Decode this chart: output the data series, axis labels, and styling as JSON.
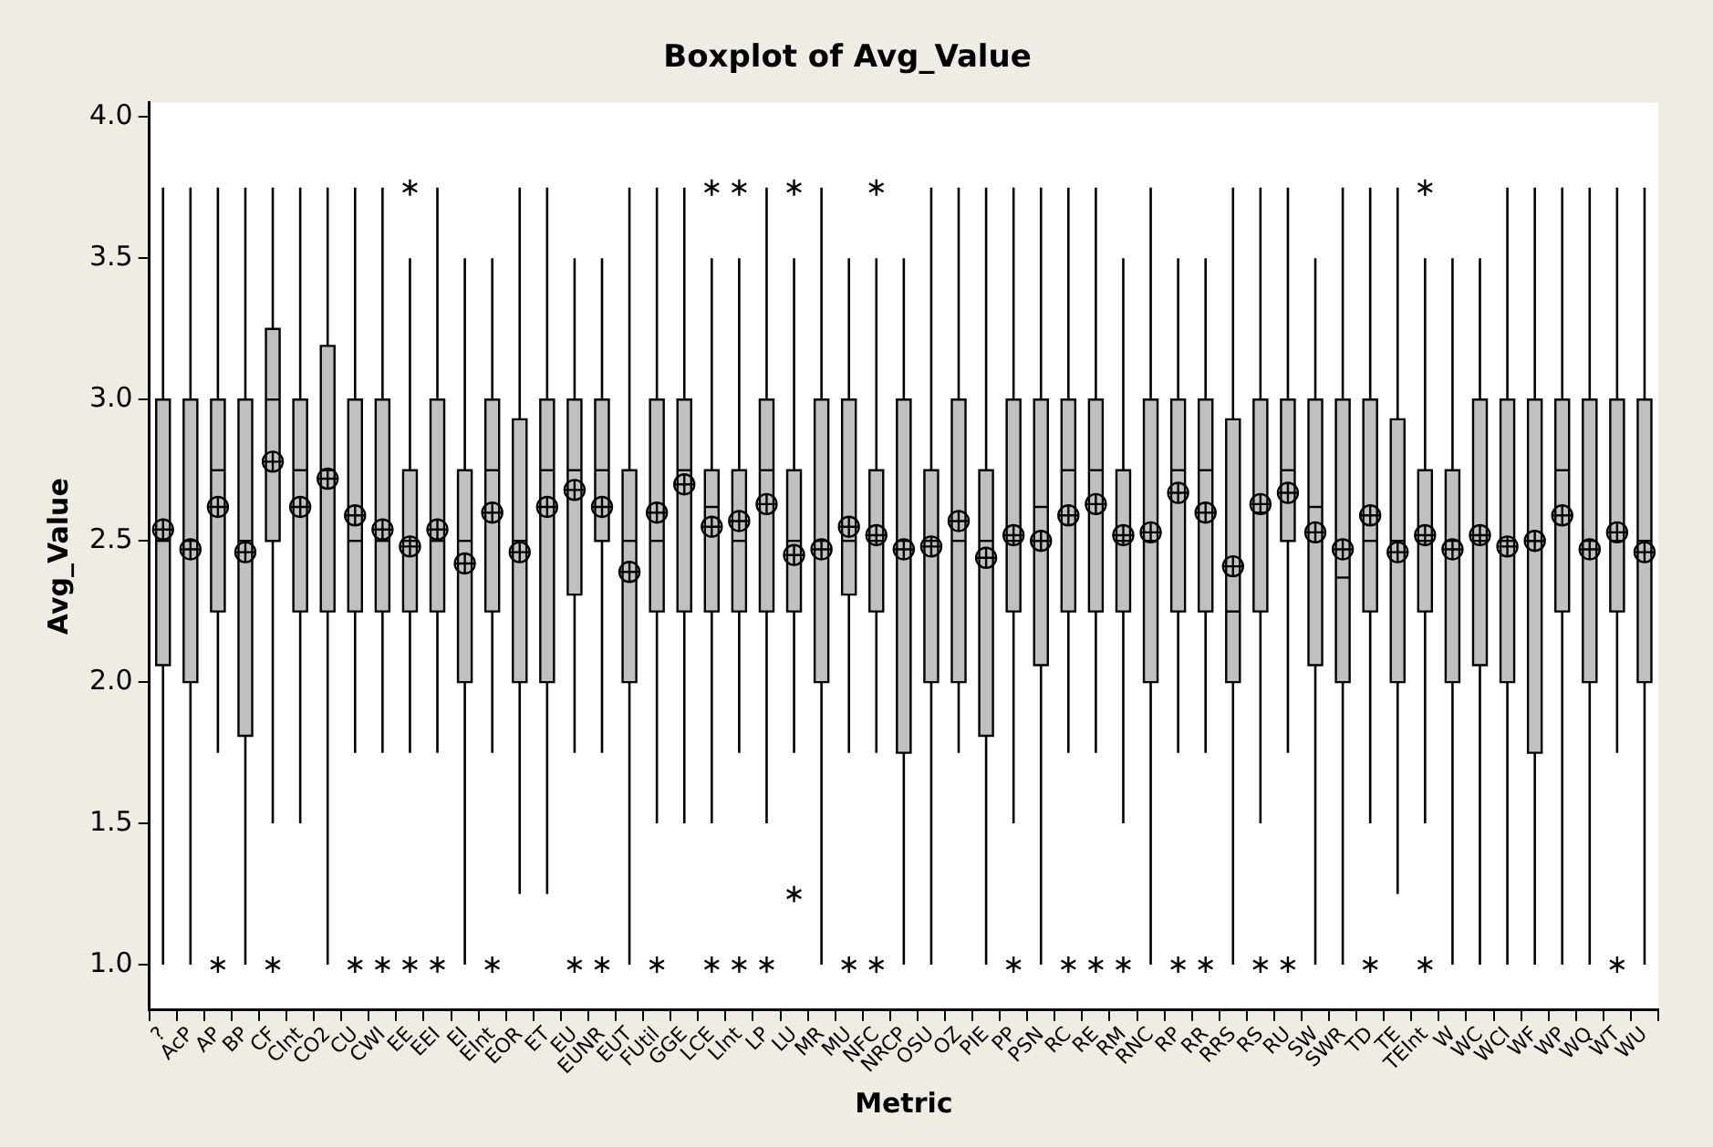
{
  "chart_data": {
    "type": "box",
    "title": "Boxplot of Avg_Value",
    "xlabel": "Metric",
    "ylabel": "Avg_Value",
    "categories": [
      "?",
      "AcP",
      "AP",
      "BP",
      "CF",
      "CInt",
      "CO2",
      "CU",
      "CWI",
      "EE",
      "EEI",
      "EI",
      "EInt",
      "EOR",
      "ET",
      "EU",
      "EUNR",
      "EUT",
      "FUtil",
      "GGE",
      "LCE",
      "LInt",
      "LP",
      "LU",
      "MR",
      "MU",
      "NFC",
      "NRCP",
      "OSU",
      "OZ",
      "PIE",
      "PP",
      "PSN",
      "RC",
      "RE",
      "RM",
      "RNC",
      "RP",
      "RR",
      "RRS",
      "RS",
      "RU",
      "SW",
      "SWR",
      "TD",
      "TE",
      "TEInt",
      "W",
      "WC",
      "WCI",
      "WF",
      "WP",
      "WQ",
      "WT",
      "WU"
    ],
    "ylim": [
      0.84,
      4.05
    ],
    "yticks": [
      {
        "value": 1,
        "label": "1.0"
      },
      {
        "value": 1.5,
        "label": "1.5"
      },
      {
        "value": 2,
        "label": "2.0"
      },
      {
        "value": 2.5,
        "label": "2.5"
      },
      {
        "value": 3,
        "label": "3.0"
      },
      {
        "value": 3.5,
        "label": "3.5"
      },
      {
        "value": 4,
        "label": "4.0"
      }
    ],
    "series": [
      {
        "color": "#c0c0c0",
        "boxes": [
          {
            "low": 1.0,
            "q1": 2.06,
            "median": 2.5,
            "q3": 3.0,
            "high": 3.75,
            "mean": 2.54
          },
          {
            "low": 1.0,
            "q1": 2.0,
            "median": 2.5,
            "q3": 3.0,
            "high": 3.75,
            "mean": 2.47
          },
          {
            "low": 1.75,
            "q1": 2.25,
            "median": 2.75,
            "q3": 3.0,
            "high": 3.75,
            "mean": 2.62,
            "outliers": [
              1.0
            ]
          },
          {
            "low": 1.0,
            "q1": 1.81,
            "median": 2.5,
            "q3": 3.0,
            "high": 3.75,
            "mean": 2.46
          },
          {
            "low": 1.5,
            "q1": 2.5,
            "median": 3.0,
            "q3": 3.25,
            "high": 3.75,
            "mean": 2.78,
            "outliers": [
              1.0
            ]
          },
          {
            "low": 1.5,
            "q1": 2.25,
            "median": 2.75,
            "q3": 3.0,
            "high": 3.75,
            "mean": 2.62
          },
          {
            "low": 1.0,
            "q1": 2.25,
            "median": 2.75,
            "q3": 3.19,
            "high": 3.75,
            "mean": 2.72
          },
          {
            "low": 1.75,
            "q1": 2.25,
            "median": 2.5,
            "q3": 3.0,
            "high": 3.75,
            "mean": 2.59,
            "outliers": [
              1.0
            ]
          },
          {
            "low": 1.75,
            "q1": 2.25,
            "median": 2.5,
            "q3": 3.0,
            "high": 3.75,
            "mean": 2.54,
            "outliers": [
              1.0
            ]
          },
          {
            "low": 1.75,
            "q1": 2.25,
            "median": 2.5,
            "q3": 2.75,
            "high": 3.5,
            "mean": 2.48,
            "outliers": [
              3.75,
              1.0
            ]
          },
          {
            "low": 1.75,
            "q1": 2.25,
            "median": 2.5,
            "q3": 3.0,
            "high": 3.75,
            "mean": 2.54,
            "outliers": [
              1.0
            ]
          },
          {
            "low": 1.0,
            "q1": 2.0,
            "median": 2.5,
            "q3": 2.75,
            "high": 3.5,
            "mean": 2.42
          },
          {
            "low": 1.75,
            "q1": 2.25,
            "median": 2.75,
            "q3": 3.0,
            "high": 3.5,
            "mean": 2.6,
            "outliers": [
              1.0
            ]
          },
          {
            "low": 1.25,
            "q1": 2.0,
            "median": 2.5,
            "q3": 2.93,
            "high": 3.75,
            "mean": 2.46
          },
          {
            "low": 1.25,
            "q1": 2.0,
            "median": 2.75,
            "q3": 3.0,
            "high": 3.75,
            "mean": 2.62
          },
          {
            "low": 1.75,
            "q1": 2.31,
            "median": 2.75,
            "q3": 3.0,
            "high": 3.5,
            "mean": 2.68,
            "outliers": [
              1.0
            ]
          },
          {
            "low": 1.75,
            "q1": 2.5,
            "median": 2.75,
            "q3": 3.0,
            "high": 3.5,
            "mean": 2.62,
            "outliers": [
              1.0
            ]
          },
          {
            "low": 1.0,
            "q1": 2.0,
            "median": 2.5,
            "q3": 2.75,
            "high": 3.75,
            "mean": 2.39
          },
          {
            "low": 1.5,
            "q1": 2.25,
            "median": 2.5,
            "q3": 3.0,
            "high": 3.75,
            "mean": 2.6,
            "outliers": [
              1.0
            ]
          },
          {
            "low": 1.5,
            "q1": 2.25,
            "median": 2.75,
            "q3": 3.0,
            "high": 3.75,
            "mean": 2.7
          },
          {
            "low": 1.5,
            "q1": 2.25,
            "median": 2.62,
            "q3": 2.75,
            "high": 3.5,
            "mean": 2.55,
            "outliers": [
              3.75,
              1.0
            ]
          },
          {
            "low": 1.75,
            "q1": 2.25,
            "median": 2.5,
            "q3": 2.75,
            "high": 3.5,
            "mean": 2.57,
            "outliers": [
              3.75,
              1.0
            ]
          },
          {
            "low": 1.5,
            "q1": 2.25,
            "median": 2.75,
            "q3": 3.0,
            "high": 3.75,
            "mean": 2.63,
            "outliers": [
              1.0
            ]
          },
          {
            "low": 1.75,
            "q1": 2.25,
            "median": 2.5,
            "q3": 2.75,
            "high": 3.5,
            "mean": 2.45,
            "outliers": [
              3.75,
              1.25
            ]
          },
          {
            "low": 1.0,
            "q1": 2.0,
            "median": 2.5,
            "q3": 3.0,
            "high": 3.75,
            "mean": 2.47
          },
          {
            "low": 1.75,
            "q1": 2.31,
            "median": 2.5,
            "q3": 3.0,
            "high": 3.5,
            "mean": 2.55,
            "outliers": [
              1.0
            ]
          },
          {
            "low": 1.75,
            "q1": 2.25,
            "median": 2.5,
            "q3": 2.75,
            "high": 3.5,
            "mean": 2.52,
            "outliers": [
              3.75,
              1.0
            ]
          },
          {
            "low": 1.0,
            "q1": 1.75,
            "median": 2.5,
            "q3": 3.0,
            "high": 3.5,
            "mean": 2.47
          },
          {
            "low": 1.0,
            "q1": 2.0,
            "median": 2.5,
            "q3": 2.75,
            "high": 3.75,
            "mean": 2.48
          },
          {
            "low": 1.75,
            "q1": 2.0,
            "median": 2.5,
            "q3": 3.0,
            "high": 3.75,
            "mean": 2.57
          },
          {
            "low": 1.0,
            "q1": 1.81,
            "median": 2.5,
            "q3": 2.75,
            "high": 3.75,
            "mean": 2.44
          },
          {
            "low": 1.5,
            "q1": 2.25,
            "median": 2.5,
            "q3": 3.0,
            "high": 3.75,
            "mean": 2.52,
            "outliers": [
              1.0
            ]
          },
          {
            "low": 1.0,
            "q1": 2.06,
            "median": 2.62,
            "q3": 3.0,
            "high": 3.75,
            "mean": 2.5
          },
          {
            "low": 1.75,
            "q1": 2.25,
            "median": 2.75,
            "q3": 3.0,
            "high": 3.75,
            "mean": 2.59,
            "outliers": [
              1.0
            ]
          },
          {
            "low": 1.75,
            "q1": 2.25,
            "median": 2.75,
            "q3": 3.0,
            "high": 3.75,
            "mean": 2.63,
            "outliers": [
              1.0
            ]
          },
          {
            "low": 1.5,
            "q1": 2.25,
            "median": 2.5,
            "q3": 2.75,
            "high": 3.5,
            "mean": 2.52,
            "outliers": [
              1.0
            ]
          },
          {
            "low": 1.0,
            "q1": 2.0,
            "median": 2.5,
            "q3": 3.0,
            "high": 3.75,
            "mean": 2.53
          },
          {
            "low": 1.75,
            "q1": 2.25,
            "median": 2.75,
            "q3": 3.0,
            "high": 3.5,
            "mean": 2.67,
            "outliers": [
              1.0
            ]
          },
          {
            "low": 1.75,
            "q1": 2.25,
            "median": 2.75,
            "q3": 3.0,
            "high": 3.5,
            "mean": 2.6,
            "outliers": [
              1.0
            ]
          },
          {
            "low": 1.0,
            "q1": 2.0,
            "median": 2.25,
            "q3": 2.93,
            "high": 3.75,
            "mean": 2.41
          },
          {
            "low": 1.5,
            "q1": 2.25,
            "median": 2.6,
            "q3": 3.0,
            "high": 3.75,
            "mean": 2.63,
            "outliers": [
              1.0
            ]
          },
          {
            "low": 1.75,
            "q1": 2.5,
            "median": 2.75,
            "q3": 3.0,
            "high": 3.75,
            "mean": 2.67,
            "outliers": [
              1.0
            ]
          },
          {
            "low": 1.0,
            "q1": 2.06,
            "median": 2.62,
            "q3": 3.0,
            "high": 3.5,
            "mean": 2.53
          },
          {
            "low": 1.0,
            "q1": 2.0,
            "median": 2.37,
            "q3": 3.0,
            "high": 3.75,
            "mean": 2.47
          },
          {
            "low": 1.5,
            "q1": 2.25,
            "median": 2.5,
            "q3": 3.0,
            "high": 3.75,
            "mean": 2.59,
            "outliers": [
              1.0
            ]
          },
          {
            "low": 1.25,
            "q1": 2.0,
            "median": 2.5,
            "q3": 2.93,
            "high": 3.75,
            "mean": 2.46
          },
          {
            "low": 1.5,
            "q1": 2.25,
            "median": 2.5,
            "q3": 2.75,
            "high": 3.5,
            "mean": 2.52,
            "outliers": [
              3.75,
              1.0
            ]
          },
          {
            "low": 1.0,
            "q1": 2.0,
            "median": 2.5,
            "q3": 2.75,
            "high": 3.5,
            "mean": 2.47
          },
          {
            "low": 1.0,
            "q1": 2.06,
            "median": 2.5,
            "q3": 3.0,
            "high": 3.5,
            "mean": 2.52
          },
          {
            "low": 1.0,
            "q1": 2.0,
            "median": 2.5,
            "q3": 3.0,
            "high": 3.75,
            "mean": 2.48
          },
          {
            "low": 1.0,
            "q1": 1.75,
            "median": 2.5,
            "q3": 3.0,
            "high": 3.75,
            "mean": 2.5
          },
          {
            "low": 1.0,
            "q1": 2.25,
            "median": 2.75,
            "q3": 3.0,
            "high": 3.75,
            "mean": 2.59
          },
          {
            "low": 1.0,
            "q1": 2.0,
            "median": 2.5,
            "q3": 3.0,
            "high": 3.75,
            "mean": 2.47
          },
          {
            "low": 1.75,
            "q1": 2.25,
            "median": 2.5,
            "q3": 3.0,
            "high": 3.75,
            "mean": 2.53,
            "outliers": [
              1.0
            ]
          },
          {
            "low": 1.0,
            "q1": 2.0,
            "median": 2.5,
            "q3": 3.0,
            "high": 3.75,
            "mean": 2.46
          }
        ]
      }
    ]
  }
}
